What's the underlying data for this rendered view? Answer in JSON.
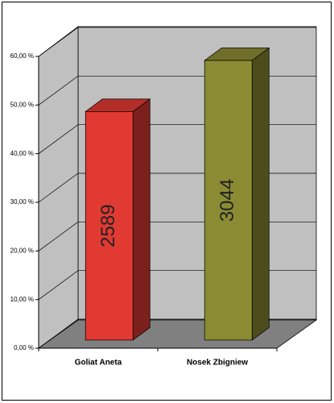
{
  "chart_data": {
    "type": "bar3d",
    "categories": [
      "Goliat Aneta",
      "Nosek Zbigniew"
    ],
    "series": [
      {
        "values": [
          47,
          57.5
        ],
        "colors": [
          "#e03a33",
          "#8b8b34"
        ],
        "counts": [
          2589,
          3044
        ]
      }
    ],
    "ylim": [
      0,
      60
    ],
    "yticks": [
      {
        "value": 0,
        "label": "0,00 %"
      },
      {
        "value": 10,
        "label": "10,00 %"
      },
      {
        "value": 20,
        "label": "20,00 %"
      },
      {
        "value": 30,
        "label": "30,00 %"
      },
      {
        "value": 40,
        "label": "40,00 %"
      },
      {
        "value": 50,
        "label": "50,00 %"
      },
      {
        "value": 60,
        "label": "60,00 %"
      }
    ],
    "grid": true
  }
}
